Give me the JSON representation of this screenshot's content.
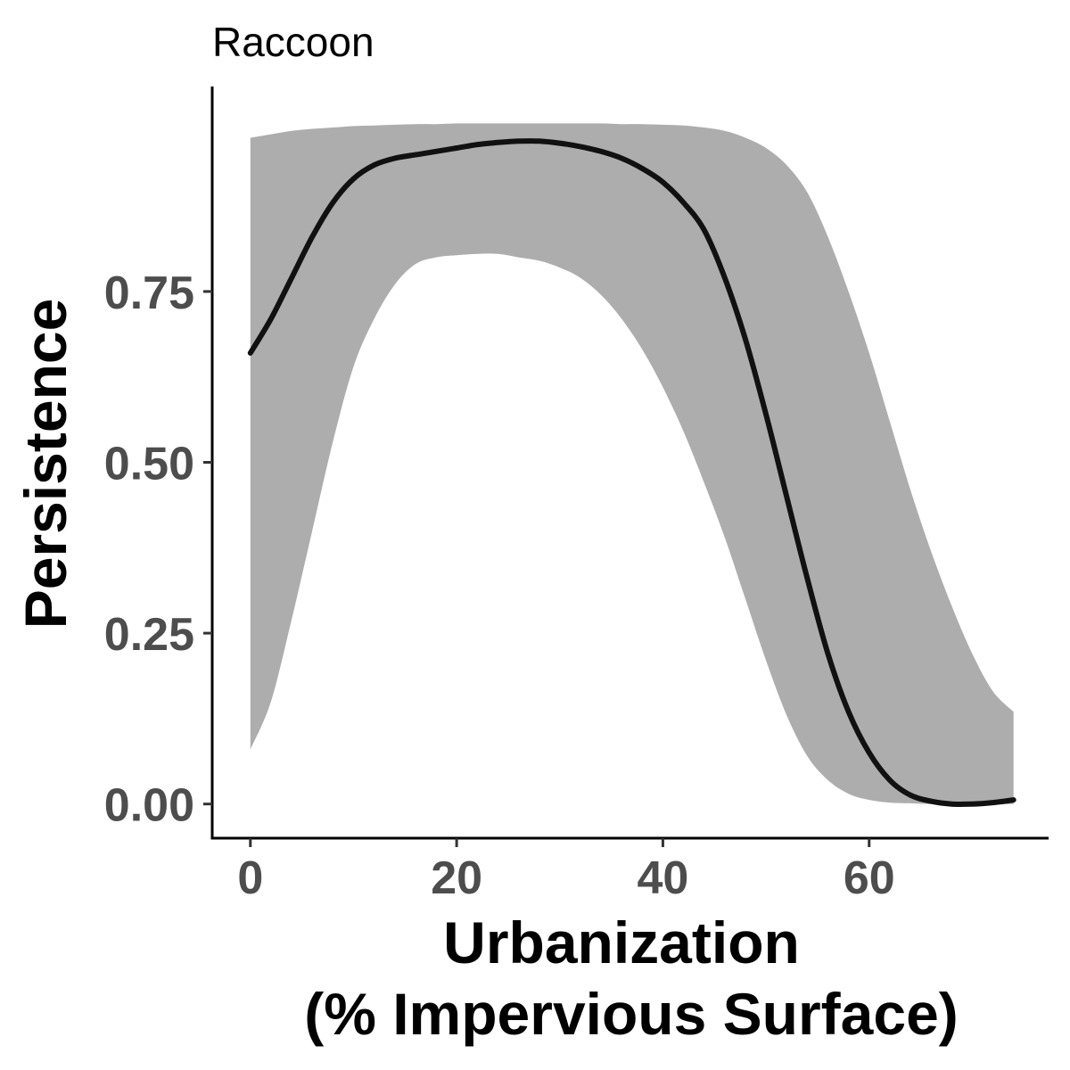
{
  "chart_data": {
    "type": "line",
    "title": "Raccoon",
    "xlabel_lines": [
      "Urbanization",
      "(% Impervious Surface)"
    ],
    "ylabel": "Persistence",
    "x_ticks": [
      0,
      20,
      40,
      60
    ],
    "x_tick_labels": [
      "0",
      "20",
      "40",
      "60"
    ],
    "y_ticks": [
      0,
      0.25,
      0.5,
      0.75
    ],
    "y_tick_labels": [
      "0.00",
      "0.25",
      "0.50",
      "0.75"
    ],
    "xlim": [
      -3.7,
      77.4
    ],
    "ylim": [
      -0.05,
      1.05
    ],
    "grid": false,
    "legend": "none",
    "colors": {
      "line": "#111111",
      "ribbon": "#adadad",
      "axis": "#000000",
      "tick_text": "#4d4d4d"
    },
    "series": [
      {
        "x": [
          0,
          2,
          4,
          6,
          8,
          10,
          12,
          14,
          16,
          18,
          20,
          22,
          24,
          26,
          28,
          30,
          32,
          34,
          36,
          38,
          40,
          42,
          44,
          46,
          48,
          50,
          52,
          54,
          56,
          58,
          60,
          62,
          64,
          66,
          68,
          70,
          72,
          74
        ],
        "y": [
          0.66,
          0.71,
          0.77,
          0.83,
          0.88,
          0.915,
          0.935,
          0.945,
          0.95,
          0.955,
          0.96,
          0.965,
          0.968,
          0.97,
          0.97,
          0.967,
          0.962,
          0.955,
          0.945,
          0.93,
          0.91,
          0.88,
          0.84,
          0.77,
          0.68,
          0.57,
          0.45,
          0.33,
          0.22,
          0.135,
          0.075,
          0.035,
          0.013,
          0.004,
          0.0,
          0.0,
          0.002,
          0.006
        ],
        "lower": [
          0.08,
          0.15,
          0.27,
          0.4,
          0.53,
          0.64,
          0.71,
          0.76,
          0.79,
          0.8,
          0.803,
          0.805,
          0.805,
          0.8,
          0.795,
          0.785,
          0.77,
          0.745,
          0.71,
          0.665,
          0.61,
          0.545,
          0.47,
          0.39,
          0.3,
          0.21,
          0.13,
          0.07,
          0.035,
          0.015,
          0.006,
          0.002,
          0.001,
          0.0,
          0.0,
          0.0,
          0.0,
          0.0
        ],
        "upper": [
          0.975,
          0.98,
          0.985,
          0.988,
          0.99,
          0.992,
          0.993,
          0.994,
          0.995,
          0.995,
          0.996,
          0.996,
          0.996,
          0.996,
          0.996,
          0.996,
          0.996,
          0.996,
          0.995,
          0.995,
          0.994,
          0.993,
          0.99,
          0.985,
          0.975,
          0.96,
          0.935,
          0.895,
          0.83,
          0.75,
          0.66,
          0.56,
          0.46,
          0.37,
          0.29,
          0.22,
          0.165,
          0.135
        ]
      }
    ]
  }
}
